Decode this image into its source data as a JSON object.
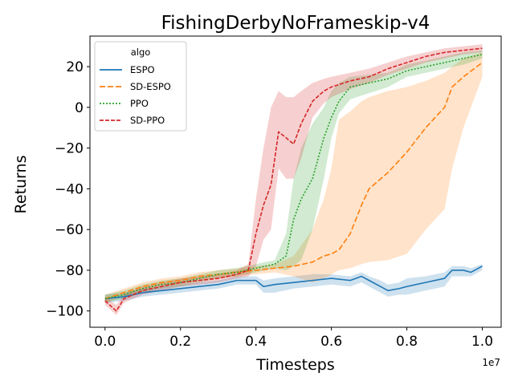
{
  "chart_data": {
    "type": "line",
    "title": "FishingDerbyNoFrameskip-v4",
    "xlabel": "Timesteps",
    "ylabel": "Returns",
    "x_offset_text": "1e7",
    "xlim": [
      -0.04,
      1.05
    ],
    "ylim": [
      -108,
      35
    ],
    "xticks": [
      0.0,
      0.2,
      0.4,
      0.6,
      0.8,
      1.0
    ],
    "xtick_labels": [
      "0.0",
      "0.2",
      "0.4",
      "0.6",
      "0.8",
      "1.0"
    ],
    "yticks": [
      -100,
      -80,
      -60,
      -40,
      -20,
      0,
      20
    ],
    "ytick_labels": [
      "−100",
      "−80",
      "−60",
      "−40",
      "−20",
      "0",
      "20"
    ],
    "grid": false,
    "legend": {
      "title": "algo",
      "position": "top-left"
    },
    "series": [
      {
        "name": "ESPO",
        "color": "#1f77b4",
        "dash": "solid",
        "x": [
          0.0,
          0.05,
          0.1,
          0.15,
          0.2,
          0.25,
          0.3,
          0.35,
          0.4,
          0.42,
          0.45,
          0.5,
          0.55,
          0.6,
          0.65,
          0.68,
          0.7,
          0.73,
          0.75,
          0.78,
          0.8,
          0.85,
          0.9,
          0.92,
          0.95,
          0.97,
          1.0
        ],
        "y": [
          -94,
          -93,
          -91,
          -90,
          -89,
          -88,
          -87,
          -85,
          -85,
          -88,
          -87,
          -86,
          -85,
          -84,
          -85,
          -83,
          -85,
          -88,
          -90,
          -89,
          -88,
          -86,
          -84,
          -80,
          -80,
          -81,
          -78
        ],
        "upper": [
          -92,
          -91,
          -89,
          -88,
          -87,
          -86,
          -85,
          -83,
          -83,
          -85,
          -84,
          -83,
          -82,
          -82,
          -83,
          -81,
          -83,
          -85,
          -87,
          -86,
          -84,
          -83,
          -81,
          -78,
          -78,
          -79,
          -77
        ],
        "lower": [
          -96,
          -95,
          -93,
          -92,
          -91,
          -90,
          -89,
          -87,
          -87,
          -91,
          -91,
          -89,
          -88,
          -87,
          -88,
          -86,
          -88,
          -91,
          -93,
          -92,
          -92,
          -90,
          -88,
          -83,
          -83,
          -83,
          -80
        ]
      },
      {
        "name": "SD-ESPO",
        "color": "#ff7f0e",
        "dash": "7,3",
        "x": [
          0.0,
          0.05,
          0.1,
          0.15,
          0.2,
          0.25,
          0.3,
          0.35,
          0.4,
          0.45,
          0.5,
          0.55,
          0.58,
          0.6,
          0.62,
          0.65,
          0.68,
          0.7,
          0.75,
          0.8,
          0.85,
          0.9,
          0.92,
          0.95,
          1.0
        ],
        "y": [
          -94,
          -91,
          -88,
          -86,
          -85,
          -83,
          -82,
          -81,
          -80,
          -79,
          -78,
          -76,
          -73,
          -72,
          -70,
          -62,
          -48,
          -40,
          -32,
          -22,
          -10,
          0,
          10,
          15,
          22
        ],
        "upper": [
          -92,
          -89,
          -86,
          -84,
          -83,
          -81,
          -80,
          -79,
          -78,
          -77,
          -73,
          -60,
          -45,
          -30,
          -6,
          -2,
          3,
          5,
          8,
          10,
          13,
          17,
          20,
          24,
          27
        ],
        "lower": [
          -96,
          -93,
          -90,
          -88,
          -87,
          -85,
          -84,
          -83,
          -82,
          -81,
          -83,
          -86,
          -84,
          -82,
          -80,
          -79,
          -77,
          -76,
          -75,
          -72,
          -60,
          -50,
          -30,
          -10,
          15
        ]
      },
      {
        "name": "PPO",
        "color": "#2ca02c",
        "dash": "2,2",
        "x": [
          0.0,
          0.05,
          0.1,
          0.15,
          0.2,
          0.25,
          0.3,
          0.35,
          0.4,
          0.45,
          0.48,
          0.5,
          0.52,
          0.55,
          0.58,
          0.6,
          0.62,
          0.65,
          0.7,
          0.75,
          0.8,
          0.85,
          0.9,
          0.95,
          1.0
        ],
        "y": [
          -94,
          -92,
          -89,
          -87,
          -86,
          -84,
          -82,
          -81,
          -79,
          -77,
          -73,
          -55,
          -45,
          -35,
          -15,
          -5,
          3,
          10,
          12,
          14,
          18,
          20,
          22,
          24,
          26
        ],
        "upper": [
          -92,
          -90,
          -87,
          -85,
          -84,
          -82,
          -80,
          -79,
          -77,
          -75,
          -62,
          -35,
          -20,
          -8,
          0,
          8,
          12,
          15,
          16,
          17,
          21,
          23,
          25,
          27,
          28
        ],
        "lower": [
          -96,
          -94,
          -91,
          -89,
          -88,
          -86,
          -84,
          -83,
          -81,
          -79,
          -80,
          -78,
          -75,
          -60,
          -35,
          -15,
          -3,
          4,
          7,
          10,
          15,
          17,
          19,
          21,
          24
        ]
      },
      {
        "name": "SD-PPO",
        "color": "#d62728",
        "dash": "5,2",
        "x": [
          0.0,
          0.03,
          0.05,
          0.1,
          0.15,
          0.2,
          0.25,
          0.3,
          0.35,
          0.38,
          0.4,
          0.42,
          0.44,
          0.46,
          0.48,
          0.5,
          0.52,
          0.55,
          0.58,
          0.6,
          0.65,
          0.7,
          0.75,
          0.8,
          0.85,
          0.9,
          0.95,
          1.0
        ],
        "y": [
          -95,
          -100,
          -94,
          -90,
          -88,
          -86,
          -85,
          -84,
          -82,
          -80,
          -62,
          -48,
          -38,
          -12,
          -15,
          -18,
          -8,
          3,
          8,
          10,
          13,
          15,
          19,
          22,
          25,
          27,
          28,
          29
        ],
        "upper": [
          -93,
          -97,
          -92,
          -88,
          -86,
          -84,
          -83,
          -82,
          -80,
          -77,
          -45,
          -20,
          0,
          8,
          5,
          5,
          8,
          12,
          14,
          15,
          17,
          19,
          22,
          25,
          27,
          29,
          30,
          31
        ],
        "lower": [
          -97,
          -102,
          -96,
          -92,
          -90,
          -88,
          -87,
          -86,
          -84,
          -83,
          -78,
          -65,
          -60,
          -30,
          -35,
          -35,
          -25,
          -5,
          2,
          5,
          9,
          12,
          16,
          19,
          22,
          24,
          26,
          27
        ]
      }
    ]
  }
}
